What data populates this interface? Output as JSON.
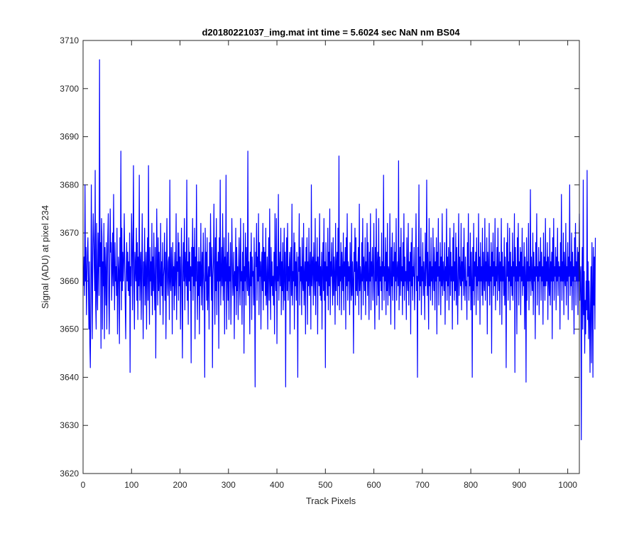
{
  "chart_data": {
    "type": "line",
    "title": "d20180221037_img.mat int time = 5.6024 sec  NaN nm BS04",
    "xlabel": "Track Pixels",
    "ylabel": "Signal (ADU) at pixel 234",
    "xlim": [
      0,
      1024
    ],
    "ylim": [
      3620,
      3710
    ],
    "xticks": [
      0,
      100,
      200,
      300,
      400,
      500,
      600,
      700,
      800,
      900,
      1000
    ],
    "yticks": [
      3620,
      3630,
      3640,
      3650,
      3660,
      3670,
      3680,
      3690,
      3700,
      3710
    ],
    "grid": false,
    "legend": "none",
    "series": [
      {
        "color": "#0000ff",
        "x_start": 1,
        "x_step": 1,
        "y": [
          3659,
          3665,
          3657,
          3680,
          3660,
          3667,
          3653,
          3661,
          3666,
          3669,
          3660,
          3650,
          3664,
          3647,
          3642,
          3657,
          3680,
          3662,
          3648,
          3666,
          3674,
          3669,
          3663,
          3658,
          3683,
          3655,
          3650,
          3672,
          3659,
          3654,
          3670,
          3665,
          3657,
          3706,
          3663,
          3668,
          3646,
          3673,
          3669,
          3650,
          3664,
          3659,
          3672,
          3648,
          3667,
          3662,
          3655,
          3668,
          3650,
          3661,
          3669,
          3674,
          3657,
          3649,
          3663,
          3675,
          3666,
          3668,
          3656,
          3662,
          3670,
          3659,
          3678,
          3662,
          3654,
          3668,
          3660,
          3663,
          3657,
          3671,
          3649,
          3658,
          3665,
          3662,
          3647,
          3669,
          3660,
          3687,
          3654,
          3671,
          3658,
          3666,
          3660,
          3664,
          3674,
          3663,
          3655,
          3648,
          3662,
          3668,
          3660,
          3666,
          3658,
          3664,
          3657,
          3670,
          3641,
          3663,
          3659,
          3674,
          3668,
          3654,
          3667,
          3684,
          3659,
          3650,
          3666,
          3663,
          3660,
          3671,
          3656,
          3668,
          3652,
          3665,
          3659,
          3682,
          3656,
          3663,
          3666,
          3652,
          3662,
          3674,
          3660,
          3648,
          3664,
          3659,
          3671,
          3655,
          3662,
          3666,
          3650,
          3663,
          3669,
          3656,
          3684,
          3660,
          3651,
          3667,
          3660,
          3664,
          3657,
          3672,
          3653,
          3665,
          3658,
          3670,
          3659,
          3654,
          3667,
          3644,
          3660,
          3675,
          3663,
          3655,
          3669,
          3658,
          3666,
          3660,
          3653,
          3672,
          3659,
          3664,
          3657,
          3668,
          3651,
          3661,
          3663,
          3670,
          3656,
          3666,
          3648,
          3662,
          3673,
          3660,
          3657,
          3664,
          3665,
          3652,
          3681,
          3660,
          3658,
          3667,
          3662,
          3649,
          3668,
          3659,
          3663,
          3654,
          3666,
          3657,
          3661,
          3674,
          3652,
          3664,
          3662,
          3670,
          3656,
          3668,
          3659,
          3665,
          3650,
          3662,
          3671,
          3657,
          3644,
          3663,
          3668,
          3660,
          3673,
          3654,
          3666,
          3662,
          3659,
          3681,
          3656,
          3664,
          3651,
          3669,
          3660,
          3666,
          3658,
          3663,
          3643,
          3667,
          3661,
          3673,
          3656,
          3667,
          3659,
          3671,
          3648,
          3665,
          3660,
          3680,
          3660,
          3652,
          3664,
          3657,
          3667,
          3649,
          3664,
          3659,
          3672,
          3655,
          3662,
          3666,
          3654,
          3670,
          3662,
          3658,
          3640,
          3671,
          3660,
          3666,
          3656,
          3669,
          3654,
          3660,
          3663,
          3650,
          3668,
          3661,
          3674,
          3663,
          3656,
          3667,
          3642,
          3661,
          3664,
          3676,
          3660,
          3651,
          3669,
          3658,
          3673,
          3653,
          3664,
          3660,
          3666,
          3646,
          3669,
          3660,
          3681,
          3655,
          3661,
          3667,
          3659,
          3674,
          3656,
          3662,
          3669,
          3649,
          3665,
          3660,
          3682,
          3650,
          3662,
          3666,
          3656,
          3670,
          3652,
          3663,
          3660,
          3668,
          3651,
          3659,
          3673,
          3664,
          3657,
          3660,
          3666,
          3648,
          3662,
          3659,
          3671,
          3653,
          3667,
          3658,
          3663,
          3652,
          3664,
          3669,
          3659,
          3655,
          3673,
          3660,
          3662,
          3651,
          3666,
          3658,
          3672,
          3645,
          3663,
          3660,
          3670,
          3655,
          3667,
          3662,
          3658,
          3687,
          3657,
          3664,
          3660,
          3649,
          3666,
          3659,
          3670,
          3652,
          3665,
          3661,
          3662,
          3655,
          3669,
          3658,
          3638,
          3666,
          3663,
          3672,
          3656,
          3665,
          3660,
          3674,
          3653,
          3668,
          3661,
          3664,
          3650,
          3663,
          3666,
          3658,
          3672,
          3654,
          3667,
          3660,
          3666,
          3657,
          3671,
          3655,
          3659,
          3665,
          3650,
          3662,
          3669,
          3656,
          3675,
          3660,
          3652,
          3667,
          3659,
          3664,
          3657,
          3661,
          3655,
          3666,
          3649,
          3674,
          3661,
          3658,
          3673,
          3647,
          3663,
          3660,
          3678,
          3656,
          3662,
          3666,
          3659,
          3671,
          3653,
          3664,
          3658,
          3668,
          3654,
          3660,
          3671,
          3656,
          3666,
          3638,
          3663,
          3669,
          3658,
          3672,
          3656,
          3663,
          3660,
          3666,
          3649,
          3664,
          3667,
          3657,
          3676,
          3655,
          3662,
          3660,
          3670,
          3650,
          3668,
          3659,
          3664,
          3656,
          3666,
          3661,
          3640,
          3665,
          3662,
          3674,
          3655,
          3667,
          3660,
          3663,
          3653,
          3669,
          3660,
          3658,
          3672,
          3655,
          3661,
          3664,
          3649,
          3667,
          3660,
          3669,
          3651,
          3664,
          3659,
          3671,
          3657,
          3662,
          3666,
          3650,
          3680,
          3659,
          3663,
          3665,
          3655,
          3668,
          3661,
          3657,
          3673,
          3653,
          3664,
          3660,
          3669,
          3649,
          3665,
          3661,
          3659,
          3674,
          3657,
          3663,
          3656,
          3666,
          3650,
          3662,
          3668,
          3658,
          3673,
          3656,
          3664,
          3642,
          3668,
          3660,
          3663,
          3657,
          3671,
          3654,
          3666,
          3659,
          3675,
          3653,
          3664,
          3661,
          3668,
          3660,
          3655,
          3669,
          3657,
          3665,
          3661,
          3651,
          3672,
          3658,
          3663,
          3666,
          3655,
          3671,
          3659,
          3686,
          3654,
          3663,
          3660,
          3668,
          3653,
          3666,
          3662,
          3658,
          3670,
          3654,
          3664,
          3661,
          3667,
          3650,
          3669,
          3659,
          3674,
          3656,
          3664,
          3660,
          3663,
          3653,
          3668,
          3661,
          3656,
          3672,
          3657,
          3664,
          3660,
          3645,
          3666,
          3662,
          3671,
          3655,
          3669,
          3658,
          3664,
          3657,
          3662,
          3667,
          3653,
          3676,
          3658,
          3663,
          3661,
          3652,
          3668,
          3660,
          3673,
          3655,
          3665,
          3662,
          3658,
          3669,
          3653,
          3664,
          3660,
          3672,
          3657,
          3668,
          3661,
          3652,
          3666,
          3660,
          3674,
          3654,
          3664,
          3661,
          3667,
          3656,
          3662,
          3672,
          3658,
          3650,
          3667,
          3660,
          3675,
          3655,
          3663,
          3666,
          3657,
          3673,
          3652,
          3665,
          3660,
          3663,
          3658,
          3670,
          3654,
          3664,
          3661,
          3682,
          3656,
          3663,
          3660,
          3669,
          3653,
          3666,
          3658,
          3672,
          3655,
          3663,
          3662,
          3657,
          3674,
          3660,
          3651,
          3667,
          3659,
          3670,
          3656,
          3664,
          3661,
          3668,
          3650,
          3666,
          3660,
          3673,
          3656,
          3662,
          3664,
          3659,
          3685,
          3654,
          3661,
          3667,
          3657,
          3671,
          3660,
          3663,
          3653,
          3668,
          3659,
          3674,
          3656,
          3665,
          3660,
          3662,
          3652,
          3669,
          3661,
          3658,
          3672,
          3655,
          3664,
          3660,
          3666,
          3649,
          3668,
          3659,
          3671,
          3656,
          3663,
          3661,
          3667,
          3654,
          3660,
          3664,
          3674,
          3658,
          3661,
          3640,
          3667,
          3660,
          3680,
          3656,
          3665,
          3659,
          3671,
          3653,
          3663,
          3660,
          3668,
          3657,
          3664,
          3661,
          3652,
          3670,
          3659,
          3663,
          3681,
          3657,
          3666,
          3660,
          3650,
          3673,
          3659,
          3664,
          3656,
          3669,
          3660,
          3663,
          3655,
          3671,
          3661,
          3658,
          3667,
          3654,
          3664,
          3660,
          3669,
          3649,
          3666,
          3661,
          3673,
          3655,
          3663,
          3660,
          3668,
          3653,
          3665,
          3659,
          3674,
          3657,
          3664,
          3661,
          3658,
          3668,
          3651,
          3663,
          3660,
          3675,
          3656,
          3665,
          3659,
          3667,
          3654,
          3662,
          3671,
          3657,
          3666,
          3660,
          3663,
          3650,
          3669,
          3660,
          3672,
          3656,
          3664,
          3658,
          3670,
          3655,
          3667,
          3660,
          3651,
          3663,
          3674,
          3657,
          3665,
          3661,
          3659,
          3672,
          3654,
          3664,
          3660,
          3667,
          3657,
          3671,
          3661,
          3656,
          3665,
          3659,
          3660,
          3652,
          3668,
          3661,
          3674,
          3656,
          3663,
          3659,
          3670,
          3654,
          3666,
          3660,
          3640,
          3667,
          3658,
          3672,
          3655,
          3664,
          3661,
          3666,
          3653,
          3669,
          3659,
          3663,
          3656,
          3674,
          3660,
          3665,
          3651,
          3668,
          3660,
          3663,
          3657,
          3671,
          3655,
          3666,
          3661,
          3658,
          3673,
          3656,
          3664,
          3660,
          3669,
          3649,
          3666,
          3661,
          3659,
          3672,
          3655,
          3663,
          3660,
          3668,
          3645,
          3666,
          3661,
          3670,
          3657,
          3664,
          3659,
          3673,
          3654,
          3663,
          3660,
          3667,
          3656,
          3671,
          3662,
          3658,
          3666,
          3653,
          3664,
          3660,
          3673,
          3651,
          3666,
          3660,
          3663,
          3657,
          3669,
          3655,
          3665,
          3660,
          3642,
          3668,
          3661,
          3672,
          3656,
          3664,
          3660,
          3671,
          3654,
          3666,
          3659,
          3663,
          3657,
          3670,
          3656,
          3664,
          3661,
          3674,
          3641,
          3667,
          3660,
          3663,
          3649,
          3669,
          3660,
          3672,
          3655,
          3664,
          3661,
          3667,
          3653,
          3666,
          3660,
          3671,
          3657,
          3663,
          3659,
          3668,
          3650,
          3665,
          3661,
          3639,
          3669,
          3656,
          3664,
          3660,
          3672,
          3654,
          3663,
          3660,
          3679,
          3657,
          3665,
          3661,
          3658,
          3670,
          3653,
          3666,
          3660,
          3663,
          3648,
          3668,
          3661,
          3674,
          3655,
          3663,
          3660,
          3667,
          3653,
          3664,
          3661,
          3669,
          3656,
          3666,
          3660,
          3663,
          3651,
          3670,
          3659,
          3665,
          3656,
          3673,
          3659,
          3664,
          3660,
          3668,
          3652,
          3665,
          3661,
          3657,
          3671,
          3655,
          3664,
          3660,
          3666,
          3648,
          3669,
          3660,
          3673,
          3656,
          3663,
          3661,
          3667,
          3654,
          3665,
          3660,
          3671,
          3657,
          3664,
          3661,
          3663,
          3650,
          3668,
          3660,
          3678,
          3656,
          3664,
          3660,
          3670,
          3653,
          3666,
          3661,
          3659,
          3672,
          3655,
          3663,
          3660,
          3668,
          3652,
          3665,
          3661,
          3680,
          3657,
          3664,
          3659,
          3670,
          3654,
          3666,
          3660,
          3663,
          3649,
          3669,
          3661,
          3672,
          3655,
          3664,
          3660,
          3667,
          3653,
          3666,
          3660,
          3674,
          3656,
          3661,
          3663,
          3627,
          3658,
          3667,
          3650,
          3681,
          3653,
          3662,
          3645,
          3656,
          3649,
          3660,
          3654,
          3683,
          3652,
          3664,
          3648,
          3660,
          3653,
          3641,
          3655,
          3663,
          3643,
          3668,
          3658,
          3640,
          3667,
          3655,
          3665,
          3650,
          3669
        ]
      }
    ]
  }
}
